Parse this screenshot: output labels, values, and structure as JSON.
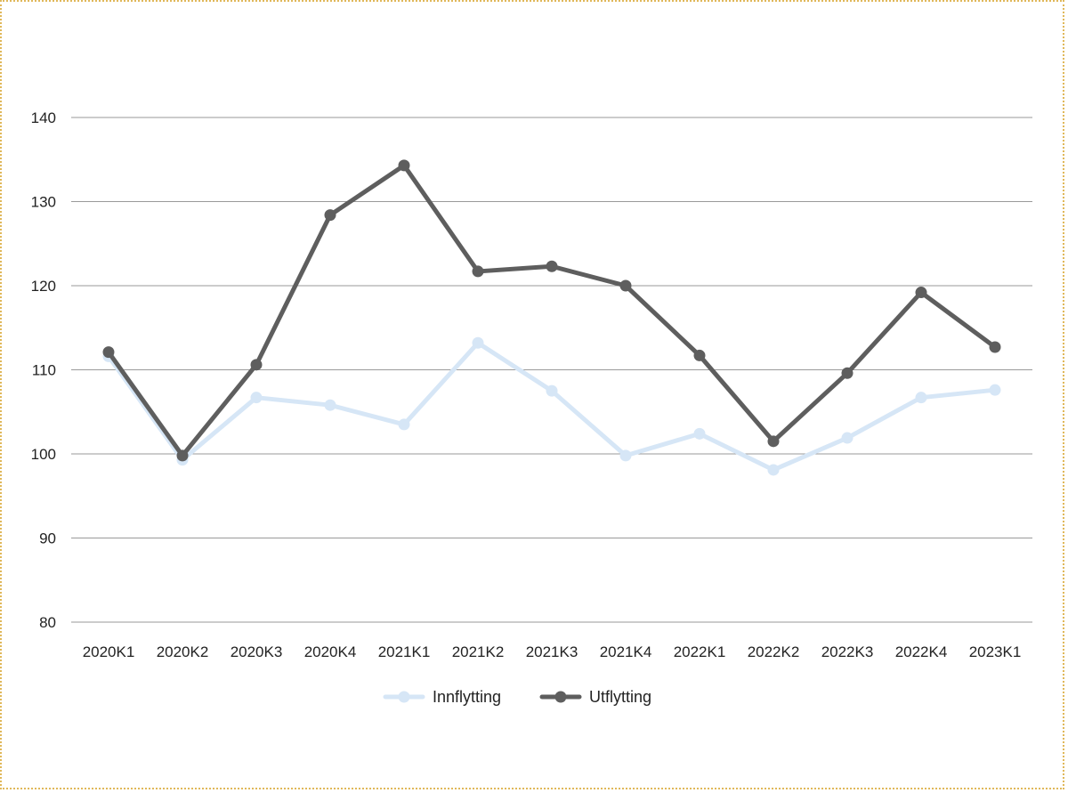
{
  "chart_data": {
    "type": "line",
    "title": "",
    "xlabel": "",
    "ylabel": "",
    "categories": [
      "2020K1",
      "2020K2",
      "2020K3",
      "2020K4",
      "2021K1",
      "2021K2",
      "2021K3",
      "2021K4",
      "2022K1",
      "2022K2",
      "2022K3",
      "2022K4",
      "2023K1"
    ],
    "ylim": [
      80,
      140
    ],
    "yticks": [
      80,
      90,
      100,
      110,
      120,
      130,
      140
    ],
    "grid": true,
    "legend_position": "bottom",
    "series": [
      {
        "name": "Innflytting",
        "color": "#d6e6f6",
        "values": [
          111.6,
          99.3,
          106.7,
          105.8,
          103.5,
          113.2,
          107.5,
          99.8,
          102.4,
          98.1,
          101.9,
          106.7,
          107.6
        ]
      },
      {
        "name": "Utflytting",
        "color": "#5e5e5e",
        "values": [
          112.1,
          99.8,
          110.6,
          128.4,
          134.3,
          121.7,
          122.3,
          120.0,
          111.7,
          101.5,
          109.6,
          119.2,
          112.7
        ]
      }
    ]
  }
}
